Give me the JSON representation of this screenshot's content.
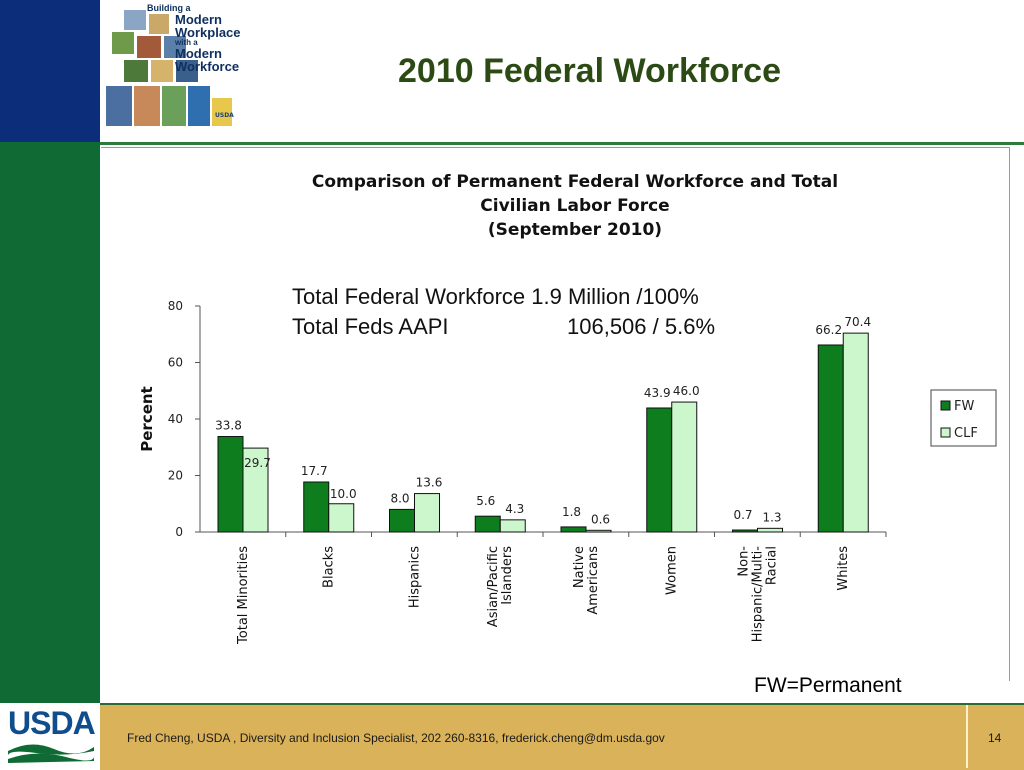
{
  "slide": {
    "title": "2010 Federal Workforce",
    "logo": {
      "line1": "Building a",
      "line2": "Modern",
      "line3": "Workplace",
      "line4": "with a",
      "line5": "Modern",
      "line6": "Workforce",
      "badge": "USDA"
    },
    "overlay": {
      "line1_label": "Total Federal Workforce",
      "line1_value": "1.9 Million /100%",
      "line2_label": "Total Feds AAPI",
      "line2_value": "106,506 / 5.6%"
    },
    "note": "FW=Permanent",
    "footer": {
      "agency": "USDA",
      "text": "Fred Cheng, USDA , Diversity and Inclusion Specialist, 202 260-8316, frederick.cheng@dm.usda.gov",
      "page": "14"
    },
    "colors": {
      "fw": "#0e7d1e",
      "clf": "#ccf7cc",
      "title": "#2b4a14",
      "navy": "#0b2d7a",
      "green_band": "#0f6b33",
      "footer_band": "#d9b25a"
    }
  },
  "chart_data": {
    "type": "bar",
    "title_lines": [
      "Comparison of Permanent Federal Workforce and Total",
      "Civilian Labor Force",
      "(September 2010)"
    ],
    "ylabel": "Percent",
    "xlabel": "",
    "ylim": [
      0,
      80
    ],
    "yticks": [
      0,
      20,
      40,
      60,
      80
    ],
    "categories": [
      [
        "Total Minorities"
      ],
      [
        "Blacks"
      ],
      [
        "Hispanics"
      ],
      [
        "Asian/Pacific",
        "Islanders"
      ],
      [
        "Native",
        "Americans"
      ],
      [
        "Women"
      ],
      [
        "Non-",
        "Hispanic/Multi-",
        "Racial"
      ],
      [
        "Whites"
      ]
    ],
    "series": [
      {
        "name": "FW",
        "values": [
          33.8,
          17.7,
          8.0,
          5.6,
          1.8,
          43.9,
          0.7,
          66.2
        ],
        "labels": [
          "33.8",
          "17.7",
          "8.0",
          "5.6",
          "1.8",
          "43.9",
          "0.7",
          "66.2"
        ]
      },
      {
        "name": "CLF",
        "values": [
          29.7,
          10.0,
          13.6,
          4.3,
          0.6,
          46.0,
          1.3,
          70.4
        ],
        "labels": [
          "29.7",
          "10.0",
          "13.6",
          "4.3",
          "0.6",
          "46.0",
          "1.3",
          "70.4"
        ]
      }
    ],
    "legend_position": "right",
    "grid": false
  }
}
